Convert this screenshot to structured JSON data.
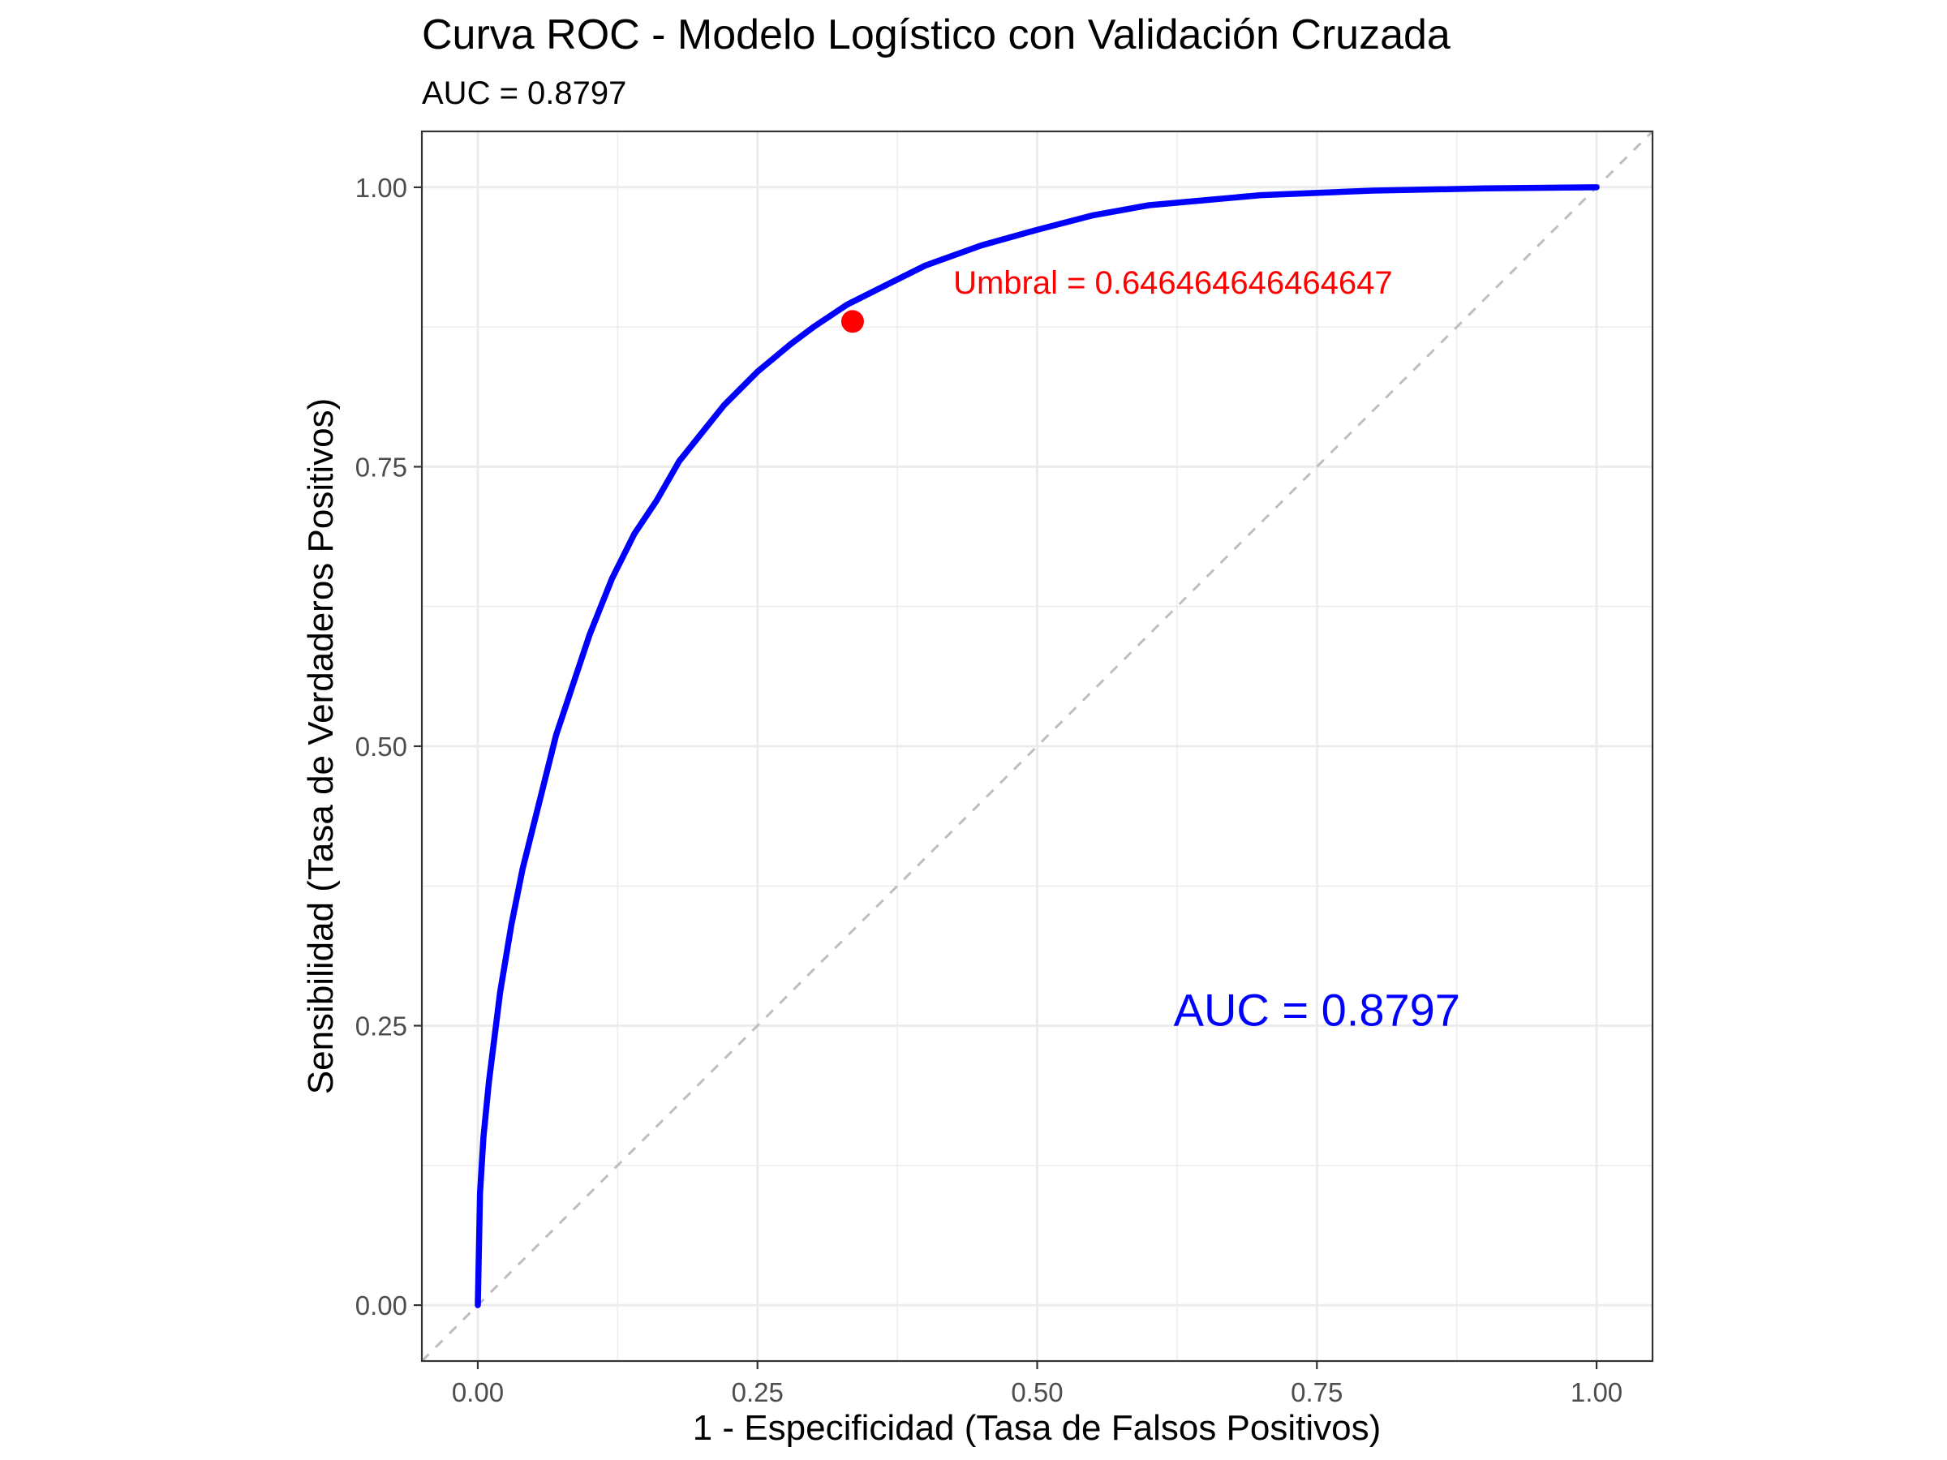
{
  "chart_data": {
    "type": "line",
    "title": "Curva ROC - Modelo Logístico con Validación Cruzada",
    "subtitle": "AUC = 0.8797",
    "xlabel": "1 - Especificidad (Tasa de Falsos Positivos)",
    "ylabel": "Sensibilidad (Tasa de Verdaderos Positivos)",
    "xlim": [
      -0.05,
      1.05
    ],
    "ylim": [
      -0.05,
      1.05
    ],
    "x_ticks": [
      0,
      0.25,
      0.5,
      0.75,
      1
    ],
    "x_tick_labels": [
      "0.00",
      "0.25",
      "0.50",
      "0.75",
      "1.00"
    ],
    "y_ticks": [
      0,
      0.25,
      0.5,
      0.75,
      1
    ],
    "y_tick_labels": [
      "0.00",
      "0.25",
      "0.50",
      "0.75",
      "1.00"
    ],
    "grid": true,
    "colors": {
      "roc": "#0000ff",
      "threshold": "#ff0000",
      "reference": "#bebebe"
    },
    "series": [
      {
        "values": [
          {
            "x": 0.0,
            "y": 0.0
          },
          {
            "x": 0.002,
            "y": 0.1
          },
          {
            "x": 0.005,
            "y": 0.15
          },
          {
            "x": 0.01,
            "y": 0.2
          },
          {
            "x": 0.02,
            "y": 0.28
          },
          {
            "x": 0.03,
            "y": 0.34
          },
          {
            "x": 0.04,
            "y": 0.39
          },
          {
            "x": 0.05,
            "y": 0.43
          },
          {
            "x": 0.06,
            "y": 0.47
          },
          {
            "x": 0.07,
            "y": 0.51
          },
          {
            "x": 0.08,
            "y": 0.54
          },
          {
            "x": 0.09,
            "y": 0.57
          },
          {
            "x": 0.1,
            "y": 0.6
          },
          {
            "x": 0.12,
            "y": 0.65
          },
          {
            "x": 0.14,
            "y": 0.69
          },
          {
            "x": 0.16,
            "y": 0.72
          },
          {
            "x": 0.18,
            "y": 0.755
          },
          {
            "x": 0.2,
            "y": 0.78
          },
          {
            "x": 0.22,
            "y": 0.805
          },
          {
            "x": 0.25,
            "y": 0.835
          },
          {
            "x": 0.28,
            "y": 0.86
          },
          {
            "x": 0.3,
            "y": 0.875
          },
          {
            "x": 0.33,
            "y": 0.895
          },
          {
            "x": 0.36,
            "y": 0.91
          },
          {
            "x": 0.4,
            "y": 0.93
          },
          {
            "x": 0.45,
            "y": 0.948
          },
          {
            "x": 0.5,
            "y": 0.962
          },
          {
            "x": 0.55,
            "y": 0.975
          },
          {
            "x": 0.6,
            "y": 0.984
          },
          {
            "x": 0.7,
            "y": 0.993
          },
          {
            "x": 0.8,
            "y": 0.997
          },
          {
            "x": 0.9,
            "y": 0.999
          },
          {
            "x": 1.0,
            "y": 1.0
          }
        ]
      }
    ],
    "reference_line": [
      {
        "x": -0.05,
        "y": -0.05
      },
      {
        "x": 1.05,
        "y": 1.05
      }
    ],
    "threshold_point": {
      "x": 0.335,
      "y": 0.88
    },
    "annotations": [
      {
        "text": "Umbral = 0.646464646464647",
        "x": 0.425,
        "y": 0.905,
        "color": "#ff0000"
      },
      {
        "text": "AUC = 0.8797",
        "x": 0.75,
        "y": 0.25,
        "color": "#0000ff"
      }
    ]
  }
}
